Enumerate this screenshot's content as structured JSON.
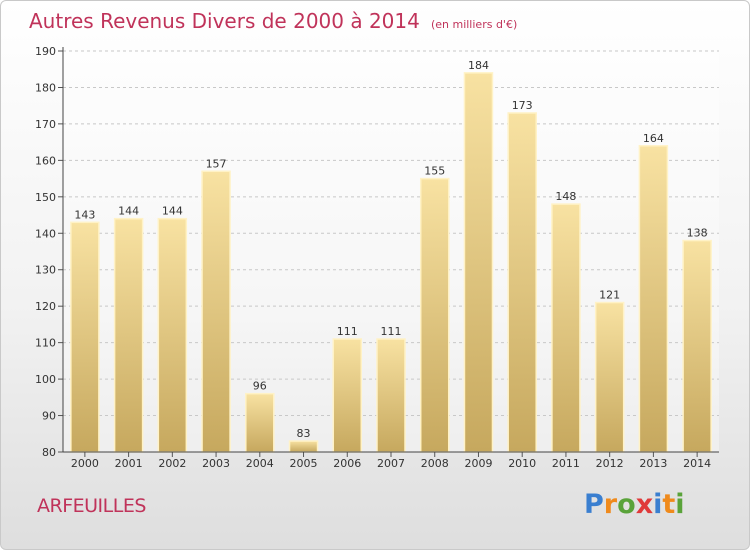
{
  "title": "Autres Revenus Divers de 2000 à 2014",
  "unit": "(en milliers d'€)",
  "commune": "ARFEUILLES",
  "logo": {
    "letters": [
      "P",
      "r",
      "o",
      "x",
      "i",
      "t",
      "i"
    ],
    "colors": [
      "#3a7fd0",
      "#ef8a1c",
      "#5aa33a",
      "#e03a3a",
      "#3a7fd0",
      "#ef8a1c",
      "#5aa33a"
    ]
  },
  "colors": {
    "accent": "#c0335a",
    "bar_light": "#f8e2a2",
    "bar_dark": "#c6a85e"
  },
  "chart_data": {
    "type": "bar",
    "categories": [
      "2000",
      "2001",
      "2002",
      "2003",
      "2004",
      "2005",
      "2006",
      "2007",
      "2008",
      "2009",
      "2010",
      "2011",
      "2012",
      "2013",
      "2014"
    ],
    "values": [
      143,
      144,
      144,
      157,
      96,
      83,
      111,
      111,
      155,
      184,
      173,
      148,
      121,
      164,
      138
    ],
    "ylim": [
      80,
      190
    ],
    "yticks": [
      80,
      90,
      100,
      110,
      120,
      130,
      140,
      150,
      160,
      170,
      180,
      190
    ],
    "grid": true,
    "legend": "none"
  }
}
